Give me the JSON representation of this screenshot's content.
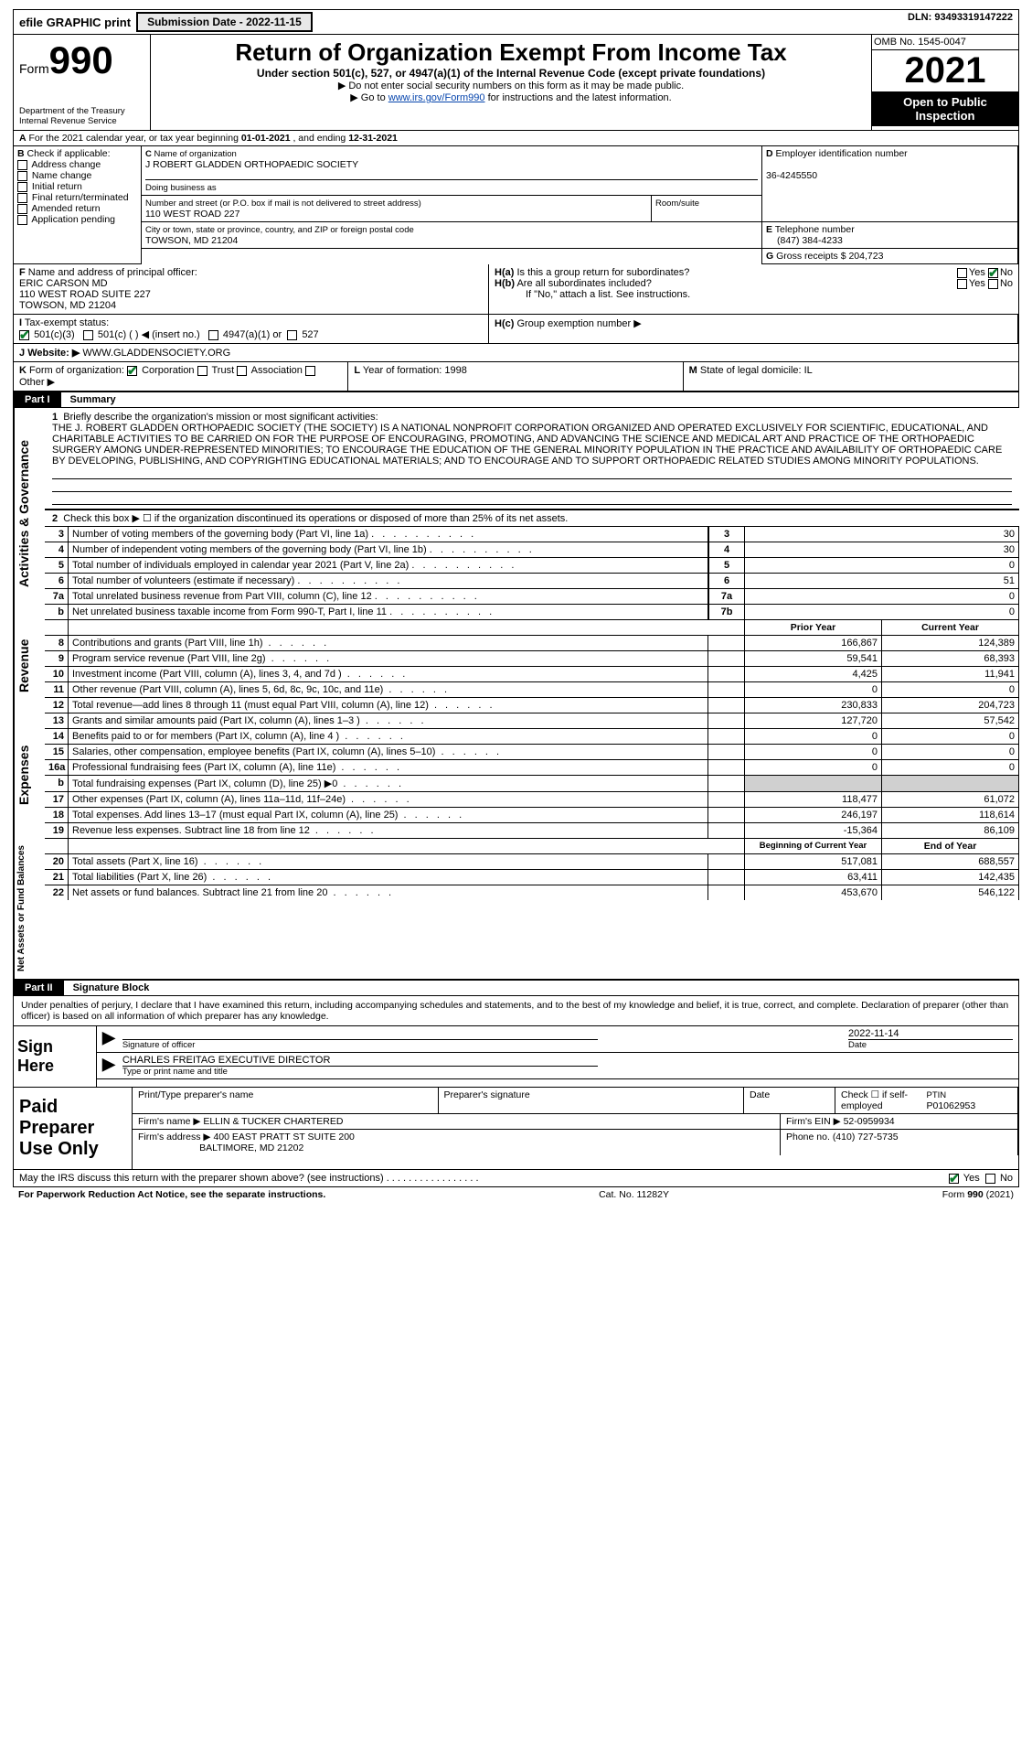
{
  "topbar": {
    "efile": "efile GRAPHIC print",
    "submission_prefix": "Submission Date - ",
    "submission_date": "2022-11-15",
    "dln_prefix": "DLN: ",
    "dln": "93493319147222"
  },
  "header": {
    "form_prefix": "Form",
    "form_no": "990",
    "dept1": "Department of the Treasury",
    "dept2": "Internal Revenue Service",
    "title": "Return of Organization Exempt From Income Tax",
    "subtitle": "Under section 501(c), 527, or 4947(a)(1) of the Internal Revenue Code (except private foundations)",
    "note1": "▶ Do not enter social security numbers on this form as it may be made public.",
    "note2_pre": "▶ Go to ",
    "note2_link": "www.irs.gov/Form990",
    "note2_post": " for instructions and the latest information.",
    "omb": "OMB No. 1545-0047",
    "year": "2021",
    "inspect1": "Open to Public",
    "inspect2": "Inspection"
  },
  "A": {
    "text": "For the 2021 calendar year, or tax year beginning ",
    "begin": "01-01-2021",
    "mid": " , and ending ",
    "end": "12-31-2021"
  },
  "B": {
    "label": "Check if applicable:",
    "opts": [
      "Address change",
      "Name change",
      "Initial return",
      "Final return/terminated",
      "Amended return",
      "Application pending"
    ]
  },
  "C": {
    "label": "Name of organization",
    "name": "J ROBERT GLADDEN ORTHOPAEDIC SOCIETY",
    "dba_label": "Doing business as",
    "street_label": "Number and street (or P.O. box if mail is not delivered to street address)",
    "street": "110 WEST ROAD 227",
    "room_label": "Room/suite",
    "city_label": "City or town, state or province, country, and ZIP or foreign postal code",
    "city": "TOWSON, MD  21204"
  },
  "D": {
    "label": "Employer identification number",
    "value": "36-4245550"
  },
  "E": {
    "label": "Telephone number",
    "value": "(847) 384-4233"
  },
  "F": {
    "label": "Name and address of principal officer:",
    "name": "ERIC CARSON MD",
    "addr1": "110 WEST ROAD SUITE 227",
    "addr2": "TOWSON, MD  21204"
  },
  "G": {
    "label": "Gross receipts $",
    "value": "204,723"
  },
  "H": {
    "a": "Is this a group return for subordinates?",
    "b": "Are all subordinates included?",
    "b_note": "If \"No,\" attach a list. See instructions.",
    "c": "Group exemption number ▶",
    "yes": "Yes",
    "no": "No"
  },
  "I": {
    "label": "Tax-exempt status:",
    "opts": [
      "501(c)(3)",
      "501(c) (  ) ◀ (insert no.)",
      "4947(a)(1) or",
      "527"
    ]
  },
  "J": {
    "label": "Website: ▶",
    "value": "WWW.GLADDENSOCIETY.ORG"
  },
  "K": {
    "label": "Form of organization:",
    "opts": [
      "Corporation",
      "Trust",
      "Association",
      "Other ▶"
    ]
  },
  "L": {
    "label": "Year of formation:",
    "value": "1998"
  },
  "M": {
    "label": "State of legal domicile:",
    "value": "IL"
  },
  "part1": {
    "label": "Part I",
    "title": "Summary"
  },
  "tabs": {
    "gov": "Activities & Governance",
    "rev": "Revenue",
    "exp": "Expenses",
    "net": "Net Assets or Fund Balances"
  },
  "mission_label": "Briefly describe the organization's mission or most significant activities:",
  "mission": "THE J. ROBERT GLADDEN ORTHOPAEDIC SOCIETY (THE SOCIETY) IS A NATIONAL NONPROFIT CORPORATION ORGANIZED AND OPERATED EXCLUSIVELY FOR SCIENTIFIC, EDUCATIONAL, AND CHARITABLE ACTIVITIES TO BE CARRIED ON FOR THE PURPOSE OF ENCOURAGING, PROMOTING, AND ADVANCING THE SCIENCE AND MEDICAL ART AND PRACTICE OF THE ORTHOPAEDIC SURGERY AMONG UNDER-REPRESENTED MINORITIES; TO ENCOURAGE THE EDUCATION OF THE GENERAL MINORITY POPULATION IN THE PRACTICE AND AVAILABILITY OF ORTHOPAEDIC CARE BY DEVELOPING, PUBLISHING, AND COPYRIGHTING EDUCATIONAL MATERIALS; AND TO ENCOURAGE AND TO SUPPORT ORTHOPAEDIC RELATED STUDIES AMONG MINORITY POPULATIONS.",
  "lines_gov": [
    {
      "n": "2",
      "t": "Check this box ▶ ☐ if the organization discontinued its operations or disposed of more than 25% of its net assets."
    },
    {
      "n": "3",
      "t": "Number of voting members of the governing body (Part VI, line 1a)",
      "box": "3",
      "v": "30"
    },
    {
      "n": "4",
      "t": "Number of independent voting members of the governing body (Part VI, line 1b)",
      "box": "4",
      "v": "30"
    },
    {
      "n": "5",
      "t": "Total number of individuals employed in calendar year 2021 (Part V, line 2a)",
      "box": "5",
      "v": "0"
    },
    {
      "n": "6",
      "t": "Total number of volunteers (estimate if necessary)",
      "box": "6",
      "v": "51"
    },
    {
      "n": "7a",
      "t": "Total unrelated business revenue from Part VIII, column (C), line 12",
      "box": "7a",
      "v": "0"
    },
    {
      "n": "b",
      "t": "Net unrelated business taxable income from Form 990-T, Part I, line 11",
      "box": "7b",
      "v": "0"
    }
  ],
  "col_headers": {
    "prior": "Prior Year",
    "current": "Current Year",
    "beg": "Beginning of Current Year",
    "end": "End of Year"
  },
  "lines_rev": [
    {
      "n": "8",
      "t": "Contributions and grants (Part VIII, line 1h)",
      "p": "166,867",
      "c": "124,389"
    },
    {
      "n": "9",
      "t": "Program service revenue (Part VIII, line 2g)",
      "p": "59,541",
      "c": "68,393"
    },
    {
      "n": "10",
      "t": "Investment income (Part VIII, column (A), lines 3, 4, and 7d )",
      "p": "4,425",
      "c": "11,941"
    },
    {
      "n": "11",
      "t": "Other revenue (Part VIII, column (A), lines 5, 6d, 8c, 9c, 10c, and 11e)",
      "p": "0",
      "c": "0"
    },
    {
      "n": "12",
      "t": "Total revenue—add lines 8 through 11 (must equal Part VIII, column (A), line 12)",
      "p": "230,833",
      "c": "204,723"
    }
  ],
  "lines_exp": [
    {
      "n": "13",
      "t": "Grants and similar amounts paid (Part IX, column (A), lines 1–3 )",
      "p": "127,720",
      "c": "57,542"
    },
    {
      "n": "14",
      "t": "Benefits paid to or for members (Part IX, column (A), line 4 )",
      "p": "0",
      "c": "0"
    },
    {
      "n": "15",
      "t": "Salaries, other compensation, employee benefits (Part IX, column (A), lines 5–10)",
      "p": "0",
      "c": "0"
    },
    {
      "n": "16a",
      "t": "Professional fundraising fees (Part IX, column (A), line 11e)",
      "p": "0",
      "c": "0"
    },
    {
      "n": "b",
      "t": "Total fundraising expenses (Part IX, column (D), line 25) ▶0",
      "p": "",
      "c": "",
      "shaded": true
    },
    {
      "n": "17",
      "t": "Other expenses (Part IX, column (A), lines 11a–11d, 11f–24e)",
      "p": "118,477",
      "c": "61,072"
    },
    {
      "n": "18",
      "t": "Total expenses. Add lines 13–17 (must equal Part IX, column (A), line 25)",
      "p": "246,197",
      "c": "118,614"
    },
    {
      "n": "19",
      "t": "Revenue less expenses. Subtract line 18 from line 12",
      "p": "-15,364",
      "c": "86,109"
    }
  ],
  "lines_net": [
    {
      "n": "20",
      "t": "Total assets (Part X, line 16)",
      "p": "517,081",
      "c": "688,557"
    },
    {
      "n": "21",
      "t": "Total liabilities (Part X, line 26)",
      "p": "63,411",
      "c": "142,435"
    },
    {
      "n": "22",
      "t": "Net assets or fund balances. Subtract line 21 from line 20",
      "p": "453,670",
      "c": "546,122"
    }
  ],
  "part2": {
    "label": "Part II",
    "title": "Signature Block"
  },
  "penalty": "Under penalties of perjury, I declare that I have examined this return, including accompanying schedules and statements, and to the best of my knowledge and belief, it is true, correct, and complete. Declaration of preparer (other than officer) is based on all information of which preparer has any knowledge.",
  "sign": {
    "here": "Sign Here",
    "sig_label": "Signature of officer",
    "date_label": "Date",
    "date": "2022-11-14",
    "name": "CHARLES FREITAG  EXECUTIVE DIRECTOR",
    "name_label": "Type or print name and title"
  },
  "prep": {
    "label": "Paid Preparer Use Only",
    "h1": "Print/Type preparer's name",
    "h2": "Preparer's signature",
    "h3": "Date",
    "h4_a": "Check ☐ if self-employed",
    "h4_b": "PTIN",
    "ptin": "P01062953",
    "firm_label": "Firm's name    ▶",
    "firm": "ELLIN & TUCKER CHARTERED",
    "ein_label": "Firm's EIN ▶",
    "ein": "52-0959934",
    "addr_label": "Firm's address ▶",
    "addr1": "400 EAST PRATT ST SUITE 200",
    "addr2": "BALTIMORE, MD  21202",
    "phone_label": "Phone no.",
    "phone": "(410) 727-5735"
  },
  "discuss": {
    "text": "May the IRS discuss this return with the preparer shown above? (see instructions)",
    "yes": "Yes",
    "no": "No"
  },
  "footer": {
    "left": "For Paperwork Reduction Act Notice, see the separate instructions.",
    "mid": "Cat. No. 11282Y",
    "right_pre": "Form ",
    "right_bold": "990",
    "right_post": " (2021)"
  }
}
